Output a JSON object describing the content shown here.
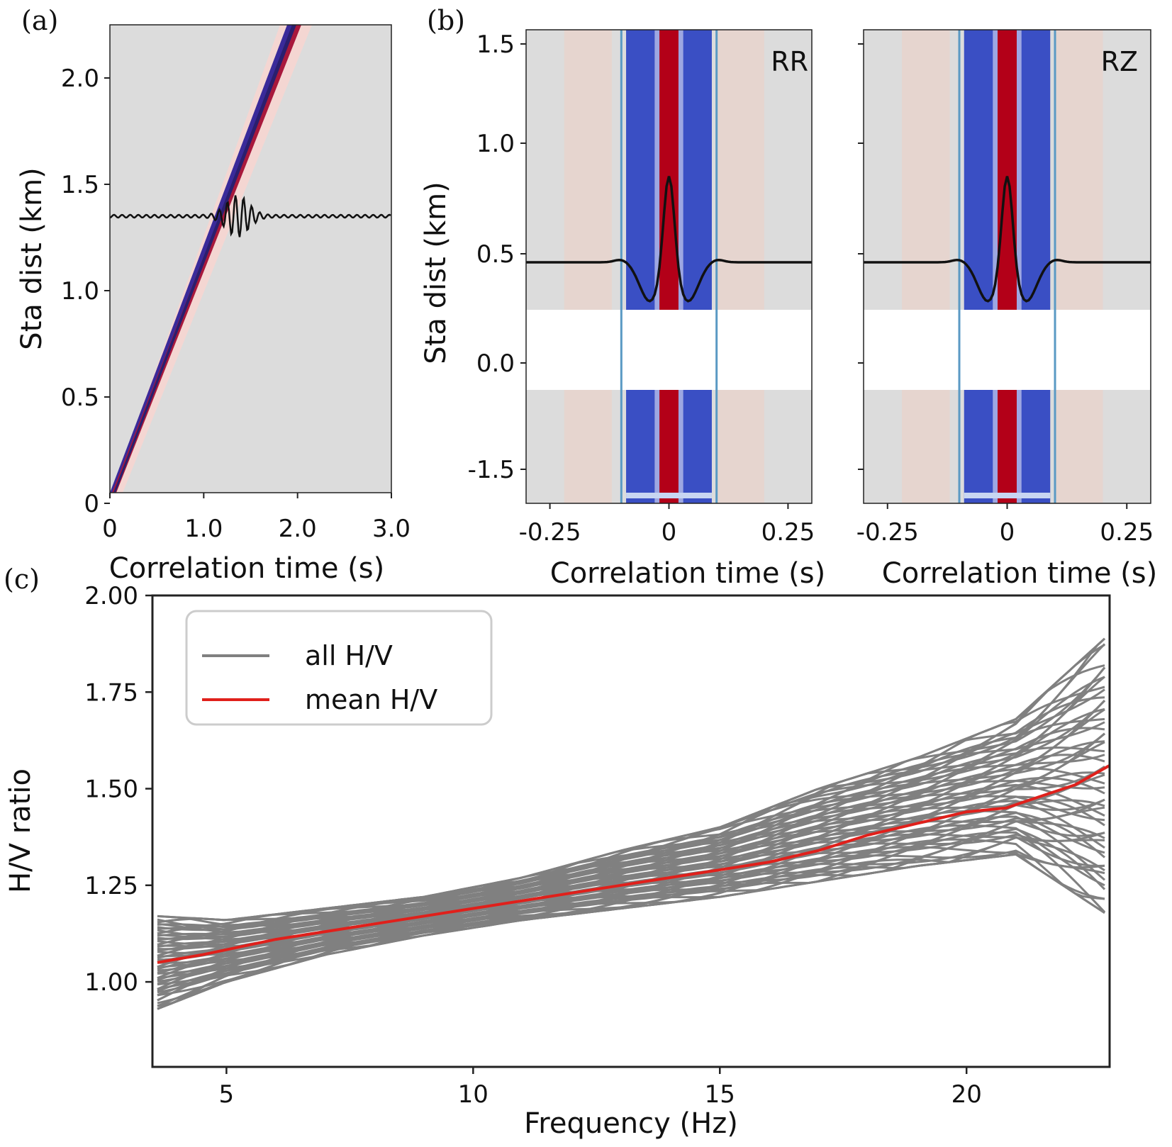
{
  "figure_labels": {
    "a": "(a)",
    "b": "(b)",
    "c": "(c)"
  },
  "panel_a": {
    "ylabel": "Sta dist (km)",
    "xlabel": "Correlation time (s)",
    "yticks": [
      {
        "v": 0,
        "label": "0"
      },
      {
        "v": 0.5,
        "label": "0.5"
      },
      {
        "v": 1.0,
        "label": "1.0"
      },
      {
        "v": 1.5,
        "label": "1.5"
      },
      {
        "v": 2.0,
        "label": "2.0"
      }
    ],
    "xticks": [
      {
        "v": 0,
        "label": "0"
      },
      {
        "v": 1.0,
        "label": "1.0"
      },
      {
        "v": 2.0,
        "label": "2.0"
      },
      {
        "v": 3.0,
        "label": "3.0"
      }
    ]
  },
  "panel_b": {
    "ylabel": "Sta dist (km)",
    "xlabel_left": "Correlation time (s)",
    "xlabel_right": "Correlation time (s)",
    "tag_left": "RR",
    "tag_right": "RZ",
    "yticks": [
      {
        "v": 1.5,
        "label": "1.5"
      },
      {
        "v": 1.0,
        "label": "1.0"
      },
      {
        "v": 0.5,
        "label": "0.5"
      },
      {
        "v": 0.0,
        "label": "0.0"
      },
      {
        "v": -1.5,
        "label": "-1.5"
      }
    ],
    "xticks": [
      {
        "v": -0.25,
        "label": "-0.25"
      },
      {
        "v": 0,
        "label": "0"
      },
      {
        "v": 0.25,
        "label": "0.25"
      }
    ]
  },
  "chart_data": {
    "type": "line",
    "xlabel": "Frequency (Hz)",
    "ylabel": "H/V ratio",
    "xlim": [
      3.5,
      22.9
    ],
    "ylim": [
      0.78,
      2.0
    ],
    "xticks": [
      5,
      10,
      15,
      20
    ],
    "yticks": [
      "1.00",
      "1.25",
      "1.50",
      "1.75",
      "2.00"
    ],
    "legend": {
      "position": "upper-left",
      "entries": [
        "all H/V",
        "mean H/V"
      ]
    },
    "series": [
      {
        "name": "mean H/V",
        "color": "#e0201b",
        "x": [
          3.6,
          4.5,
          6,
          8,
          10,
          12,
          14,
          16,
          17,
          18,
          19,
          20,
          20.8,
          21.5,
          22.2,
          22.9
        ],
        "y": [
          1.05,
          1.07,
          1.11,
          1.15,
          1.19,
          1.23,
          1.27,
          1.31,
          1.34,
          1.38,
          1.41,
          1.44,
          1.45,
          1.48,
          1.51,
          1.56
        ]
      },
      {
        "name": "all H/V",
        "color": "#808080",
        "note_free": true,
        "x": [
          3.6,
          5,
          7,
          9,
          11,
          13,
          15,
          17,
          19,
          21,
          22.9
        ],
        "y_low": [
          0.93,
          1.0,
          1.07,
          1.12,
          1.16,
          1.19,
          1.22,
          1.26,
          1.3,
          1.33,
          1.17
        ],
        "y_high": [
          1.17,
          1.16,
          1.19,
          1.22,
          1.27,
          1.34,
          1.4,
          1.5,
          1.58,
          1.68,
          1.9
        ]
      }
    ]
  },
  "colors": {
    "seismic_red": "#b30018",
    "seismic_blue": "#3a4fc4",
    "background_gray": "#dcdcdc",
    "blue_marker_line": "#5a9ac4",
    "mean_line": "#e0201b",
    "all_lines": "#808080"
  }
}
